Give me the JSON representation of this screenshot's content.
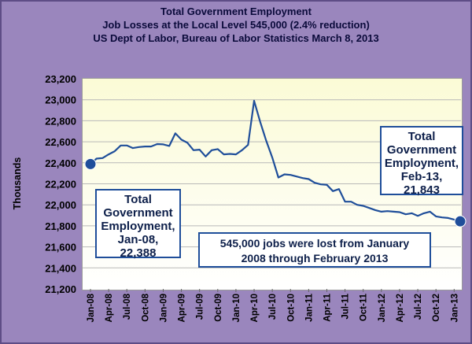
{
  "chart_data": {
    "type": "line",
    "title_lines": [
      "Total Government Employment",
      "Job Losses at the Local Level 545,000 (2.4% reduction)",
      "US Dept of Labor, Bureau of Labor Statistics March 8, 2013"
    ],
    "ylabel": "Thousands",
    "xlabel": "",
    "ylim": [
      21200,
      23200
    ],
    "yticks": [
      21200,
      21400,
      21600,
      21800,
      22000,
      22200,
      22400,
      22600,
      22800,
      23000,
      23200
    ],
    "ytick_labels": [
      "21,200",
      "21,400",
      "21,600",
      "21,800",
      "22,000",
      "22,200",
      "22,400",
      "22,600",
      "22,800",
      "23,000",
      "23,200"
    ],
    "xtick_labels": [
      "Jan-08",
      "Apr-08",
      "Jul-08",
      "Oct-08",
      "Jan-09",
      "Apr-09",
      "Jul-09",
      "Oct-09",
      "Jan-10",
      "Apr-10",
      "Jul-10",
      "Oct-10",
      "Jan-11",
      "Apr-11",
      "Jul-11",
      "Oct-11",
      "Jan-12",
      "Apr-12",
      "Jul-12",
      "Oct-12",
      "Jan-13"
    ],
    "x_start": "Jan-08",
    "grid": true,
    "series": [
      {
        "name": "Total Government Employment",
        "color": "#1f4e9a",
        "values": [
          22388,
          22440,
          22445,
          22480,
          22510,
          22565,
          22565,
          22540,
          22550,
          22555,
          22555,
          22578,
          22575,
          22560,
          22680,
          22620,
          22590,
          22520,
          22525,
          22460,
          22520,
          22530,
          22480,
          22485,
          22480,
          22520,
          22570,
          22990,
          22790,
          22610,
          22450,
          22260,
          22290,
          22285,
          22270,
          22255,
          22245,
          22210,
          22195,
          22190,
          22130,
          22150,
          22030,
          22030,
          22000,
          21990,
          21970,
          21950,
          21935,
          21940,
          21935,
          21930,
          21910,
          21920,
          21895,
          21920,
          21935,
          21890,
          21880,
          21875,
          21860,
          21843
        ]
      }
    ],
    "markers": [
      {
        "label": "Jan-08",
        "value": 22388,
        "index": 0
      },
      {
        "label": "Feb-13",
        "value": 21843,
        "index": 61
      }
    ]
  },
  "callouts": {
    "start": [
      "Total",
      "Government",
      "Employment,",
      "Jan-08,",
      "22,388"
    ],
    "end": [
      "Total",
      "Government",
      "Employment,",
      "Feb-13,",
      "21,843"
    ],
    "note": "545,000 jobs were lost from January 2008 through February 2013"
  },
  "colors": {
    "background": "#9a86bd",
    "line": "#1f4e9a",
    "plot_top": "#fbfbd6"
  }
}
